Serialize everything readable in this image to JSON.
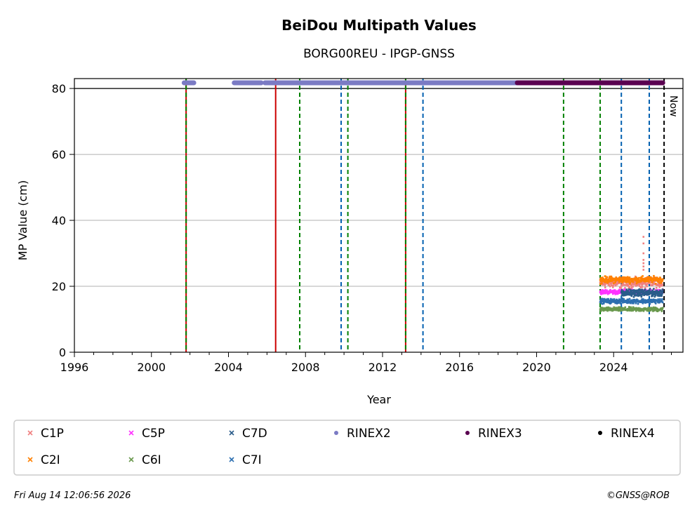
{
  "chart_data": {
    "type": "scatter",
    "title": "BeiDou Multipath Values",
    "subtitle": "BORG00REU - IPGP-GNSS",
    "xlabel": "Year",
    "ylabel": "MP Value (cm)",
    "xlim": [
      1996,
      2027.6
    ],
    "ylim": [
      0,
      83
    ],
    "xticks": [
      1996,
      2000,
      2004,
      2008,
      2012,
      2016,
      2020,
      2024
    ],
    "yticks": [
      0,
      20,
      40,
      60,
      80
    ],
    "grid": "y",
    "legend_placement": "bottom",
    "now_label": "Now",
    "now_year": 2026.62,
    "hline_y": 80,
    "vlines": [
      {
        "x": 2001.8,
        "color": "#cc0000",
        "style": "solid"
      },
      {
        "x": 2001.8,
        "color": "#008000",
        "style": "dashed"
      },
      {
        "x": 2006.45,
        "color": "#cc0000",
        "style": "solid"
      },
      {
        "x": 2007.7,
        "color": "#008000",
        "style": "dashed"
      },
      {
        "x": 2009.85,
        "color": "#0060b0",
        "style": "dashed"
      },
      {
        "x": 2010.2,
        "color": "#008000",
        "style": "dashed"
      },
      {
        "x": 2013.2,
        "color": "#cc0000",
        "style": "solid"
      },
      {
        "x": 2013.2,
        "color": "#008000",
        "style": "dashed"
      },
      {
        "x": 2014.1,
        "color": "#0060b0",
        "style": "dashed"
      },
      {
        "x": 2021.4,
        "color": "#008000",
        "style": "dashed"
      },
      {
        "x": 2023.3,
        "color": "#008000",
        "style": "dashed"
      },
      {
        "x": 2024.4,
        "color": "#0060b0",
        "style": "dashed"
      },
      {
        "x": 2025.85,
        "color": "#0060b0",
        "style": "dashed"
      }
    ],
    "rinex_bands": [
      {
        "name": "RINEX2",
        "color": "#7b7bc4",
        "segments": [
          [
            2001.7,
            2002.2
          ],
          [
            2004.3,
            2005.7
          ],
          [
            2005.9,
            2019.0
          ]
        ]
      },
      {
        "name": "RINEX3",
        "color": "#5a0050",
        "segments": [
          [
            2019.0,
            2026.55
          ]
        ]
      },
      {
        "name": "RINEX4",
        "color": "#000000",
        "segments": []
      }
    ],
    "series": [
      {
        "name": "C1P",
        "color": "#f08080",
        "marker": "x",
        "x_range": [
          2023.3,
          2026.55
        ],
        "y_center": 21,
        "spread": 2.2,
        "spike": {
          "x": 2025.55,
          "values": [
            35,
            33,
            30,
            28,
            27,
            26,
            25
          ]
        }
      },
      {
        "name": "C2I",
        "color": "#ff8000",
        "marker": "x",
        "x_range": [
          2023.3,
          2026.55
        ],
        "y_center": 22,
        "spread": 1.4
      },
      {
        "name": "C5P",
        "color": "#ff33ff",
        "marker": "x",
        "x_range": [
          2023.3,
          2026.55
        ],
        "y_center": 18.3,
        "spread": 1.0
      },
      {
        "name": "C6I",
        "color": "#6a994e",
        "marker": "x",
        "x_range": [
          2023.3,
          2026.55
        ],
        "y_center": 13,
        "spread": 0.9
      },
      {
        "name": "C7D",
        "color": "#2a5c8a",
        "marker": "x",
        "x_range": [
          2024.4,
          2026.55
        ],
        "y_center": 18,
        "spread": 1.5
      },
      {
        "name": "C7I",
        "color": "#2c6fb0",
        "marker": "x",
        "x_range": [
          2023.3,
          2026.55
        ],
        "y_center": 15.5,
        "spread": 1.0
      }
    ]
  },
  "legend": {
    "items": [
      {
        "label": "C1P",
        "color": "#f08080",
        "marker": "x"
      },
      {
        "label": "C5P",
        "color": "#ff33ff",
        "marker": "x"
      },
      {
        "label": "C7D",
        "color": "#2a5c8a",
        "marker": "x"
      },
      {
        "label": "RINEX2",
        "color": "#7b7bc4",
        "marker": "dot"
      },
      {
        "label": "RINEX3",
        "color": "#5a0050",
        "marker": "dot"
      },
      {
        "label": "RINEX4",
        "color": "#000000",
        "marker": "dot"
      },
      {
        "label": "C2I",
        "color": "#ff8000",
        "marker": "x"
      },
      {
        "label": "C6I",
        "color": "#6a994e",
        "marker": "x"
      },
      {
        "label": "C7I",
        "color": "#2c6fb0",
        "marker": "x"
      }
    ]
  },
  "footer": {
    "timestamp": "Fri Aug 14 12:06:56 2026",
    "credit": "©GNSS@ROB"
  }
}
